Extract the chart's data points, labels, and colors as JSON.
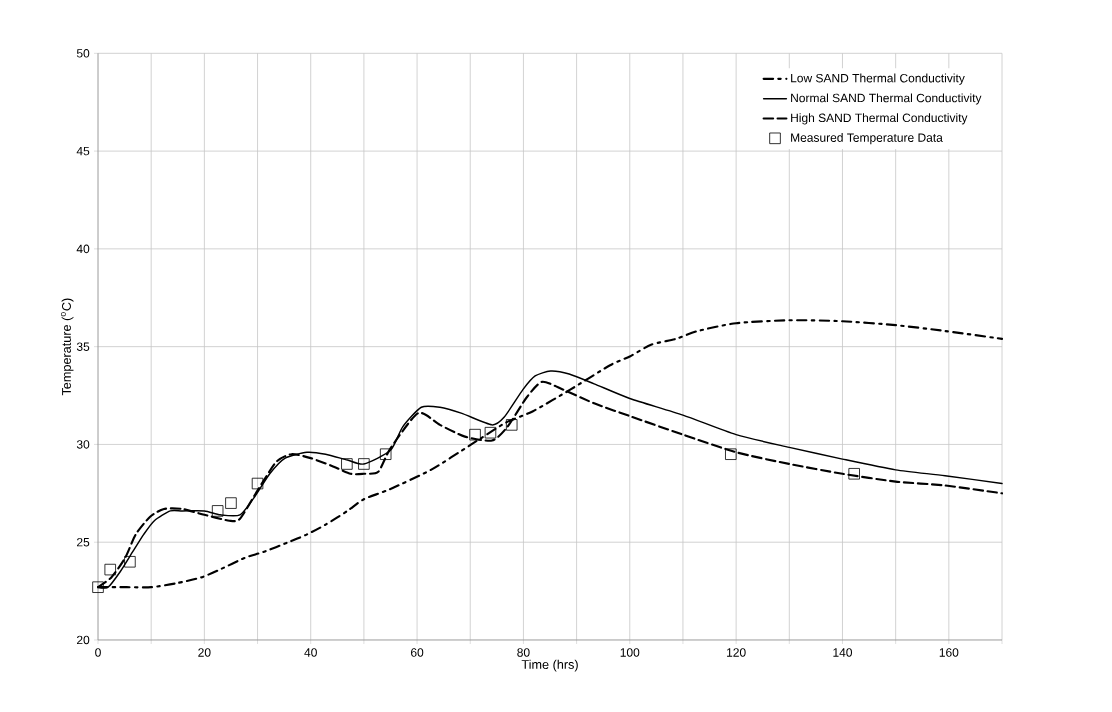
{
  "chart_data": {
    "type": "line",
    "xlabel": "Time (hrs)",
    "ylabel": "Temperature ($^{o}$C)",
    "xlim": [
      0,
      170
    ],
    "ylim": [
      20,
      50
    ],
    "xticks": [
      0,
      {
        "value": 10,
        "label": null
      },
      20,
      {
        "value": 30,
        "label": null
      },
      40,
      {
        "value": 50,
        "label": null
      },
      60,
      {
        "value": 70,
        "label": null
      },
      80,
      {
        "value": 90,
        "label": null
      },
      100,
      {
        "value": 110,
        "label": null
      },
      120,
      {
        "value": 130,
        "label": null
      },
      140,
      {
        "value": 150,
        "label": null
      },
      160,
      {
        "value": 170,
        "label": null
      }
    ],
    "yticks": [
      20,
      25,
      30,
      35,
      40,
      45,
      50
    ],
    "grid": true,
    "legend": "top right",
    "series": [
      {
        "name": "Low SAND Thermal Conductivity",
        "line_style": "dashdot",
        "marker": "none",
        "color": "#000000",
        "x": [
          0,
          5.4,
          10,
          14.7,
          19.4,
          22.9,
          27.6,
          31.1,
          35.8,
          39.3,
          42.8,
          46.9,
          50,
          54.8,
          62.6,
          70.2,
          76.6,
          81.8,
          88.8,
          96.3,
          100,
          104,
          108.7,
          112.8,
          120,
          130,
          140,
          150,
          159.3,
          170
        ],
        "values": [
          22.7,
          22.7,
          22.7,
          22.9,
          23.2,
          23.6,
          24.2,
          24.5,
          25.0,
          25.4,
          25.9,
          26.6,
          27.2,
          27.7,
          28.7,
          30.0,
          31.1,
          31.7,
          32.8,
          34.05,
          34.5,
          35.1,
          35.4,
          35.8,
          36.2,
          36.35,
          36.3,
          36.1,
          35.8,
          35.4
        ]
      },
      {
        "name": "Normal SAND Thermal Conductivity",
        "line_style": "solid",
        "marker": "none",
        "color": "#000000",
        "x": [
          0,
          1.9,
          4.2,
          6.5,
          8.6,
          10.6,
          13.6,
          15.9,
          20,
          23,
          26.7,
          29.4,
          32.3,
          35.2,
          39.3,
          42.8,
          46.9,
          50,
          55,
          57.3,
          60.8,
          64.3,
          68.3,
          74.1,
          76.4,
          79.9,
          82.2,
          85.1,
          88.6,
          93.3,
          100,
          110,
          120,
          130,
          140,
          150,
          159.3,
          170
        ],
        "values": [
          22.7,
          22.7,
          23.5,
          24.5,
          25.4,
          26.1,
          26.6,
          26.6,
          26.6,
          26.4,
          26.4,
          27.3,
          28.5,
          29.3,
          29.6,
          29.5,
          29.2,
          29.0,
          29.7,
          30.9,
          31.9,
          31.9,
          31.6,
          31.0,
          31.4,
          32.8,
          33.5,
          33.75,
          33.6,
          33.1,
          32.35,
          31.5,
          30.5,
          29.85,
          29.25,
          28.7,
          28.4,
          28.0
        ]
      },
      {
        "name": "High SAND Thermal Conductivity",
        "line_style": "dashed",
        "marker": "none",
        "color": "#000000",
        "x": [
          0,
          2.5,
          5.1,
          7.1,
          9.8,
          12.4,
          15.9,
          20,
          24.7,
          26.7,
          29.9,
          33.5,
          36.4,
          40,
          44,
          47.5,
          50,
          52.7,
          55,
          60.2,
          64.3,
          69,
          74.1,
          77,
          80.6,
          83.5,
          87.5,
          93.3,
          100,
          110,
          120,
          130,
          140,
          150,
          159.3,
          170
        ],
        "values": [
          22.7,
          23.2,
          24.2,
          25.4,
          26.3,
          26.7,
          26.7,
          26.4,
          26.1,
          26.2,
          27.6,
          29.1,
          29.5,
          29.3,
          28.9,
          28.5,
          28.5,
          28.6,
          29.8,
          31.6,
          31.0,
          30.4,
          30.2,
          30.9,
          32.4,
          33.2,
          32.8,
          32.1,
          31.45,
          30.5,
          29.6,
          29.0,
          28.5,
          28.1,
          27.9,
          27.5
        ]
      },
      {
        "name": "Measured Temperature Data",
        "type": "scatter",
        "marker": "square",
        "color": "#000000",
        "x": [
          0,
          2.3,
          6,
          22.5,
          25,
          30,
          46.8,
          50,
          54.1,
          70.9,
          73.8,
          77.8,
          119,
          142.2
        ],
        "values": [
          22.7,
          23.6,
          24.0,
          26.6,
          27.0,
          28.0,
          29.0,
          29.0,
          29.5,
          30.5,
          30.6,
          31.0,
          29.5,
          28.5
        ]
      }
    ]
  }
}
